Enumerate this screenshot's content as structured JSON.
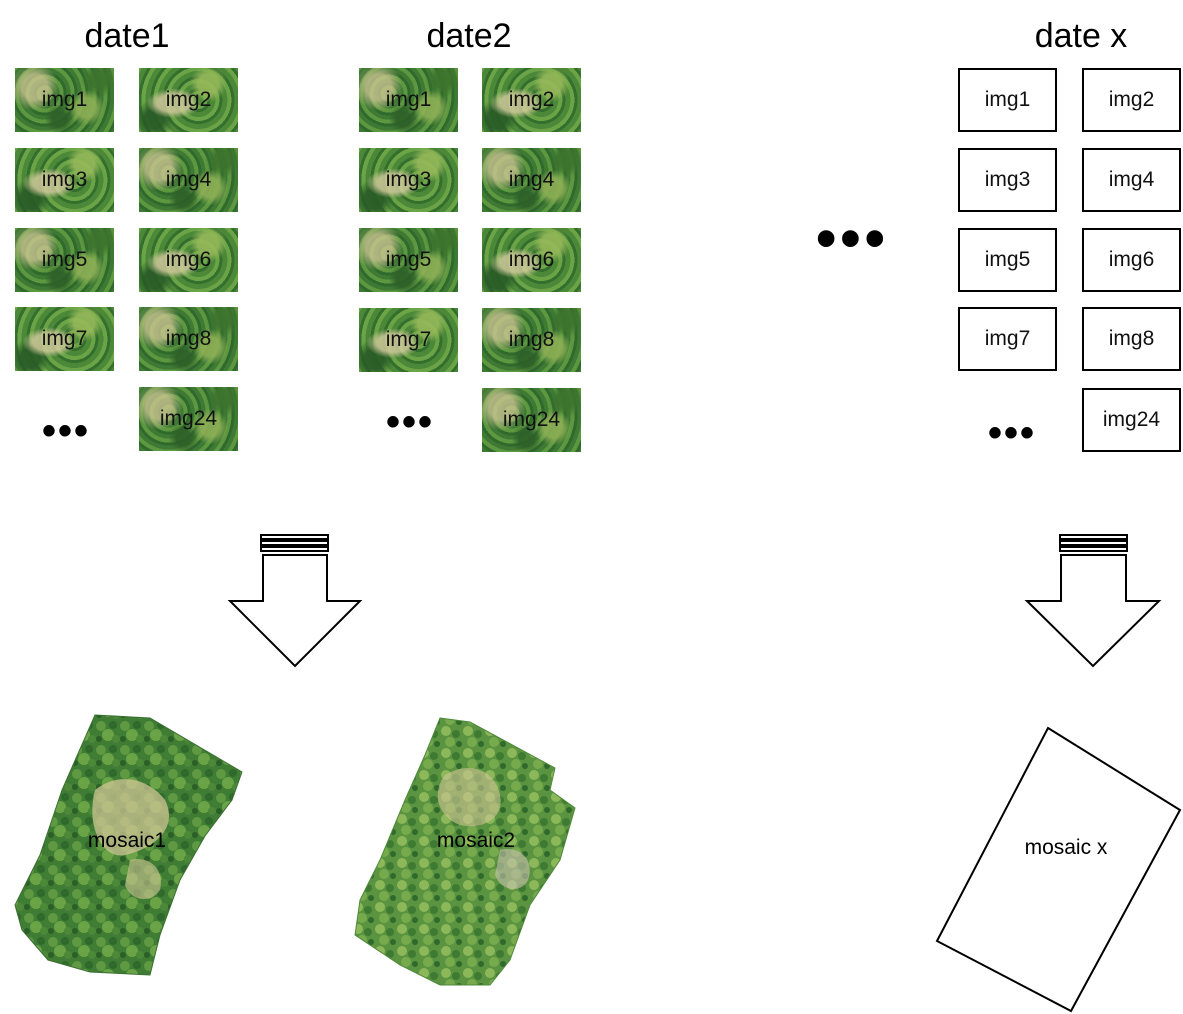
{
  "columns": [
    {
      "title": "date1",
      "tiles": [
        "img1",
        "img2",
        "img3",
        "img4",
        "img5",
        "img6",
        "img7",
        "img8",
        "img24"
      ],
      "ellipsis": "•••",
      "mosaic": "mosaic1"
    },
    {
      "title": "date2",
      "tiles": [
        "img1",
        "img2",
        "img3",
        "img4",
        "img5",
        "img6",
        "img7",
        "img8",
        "img24"
      ],
      "ellipsis": "•••",
      "mosaic": "mosaic2"
    },
    {
      "title": "date x",
      "tiles": [
        "img1",
        "img2",
        "img3",
        "img4",
        "img5",
        "img6",
        "img7",
        "img8",
        "img24"
      ],
      "ellipsis": "•••",
      "mosaic": "mosaic x"
    }
  ],
  "between_ellipsis": "•••",
  "colors": {
    "foliage_dark": "#2f6a2c",
    "foliage_light": "#6aa446",
    "clearing": "#d2c896",
    "outline": "#000000"
  }
}
